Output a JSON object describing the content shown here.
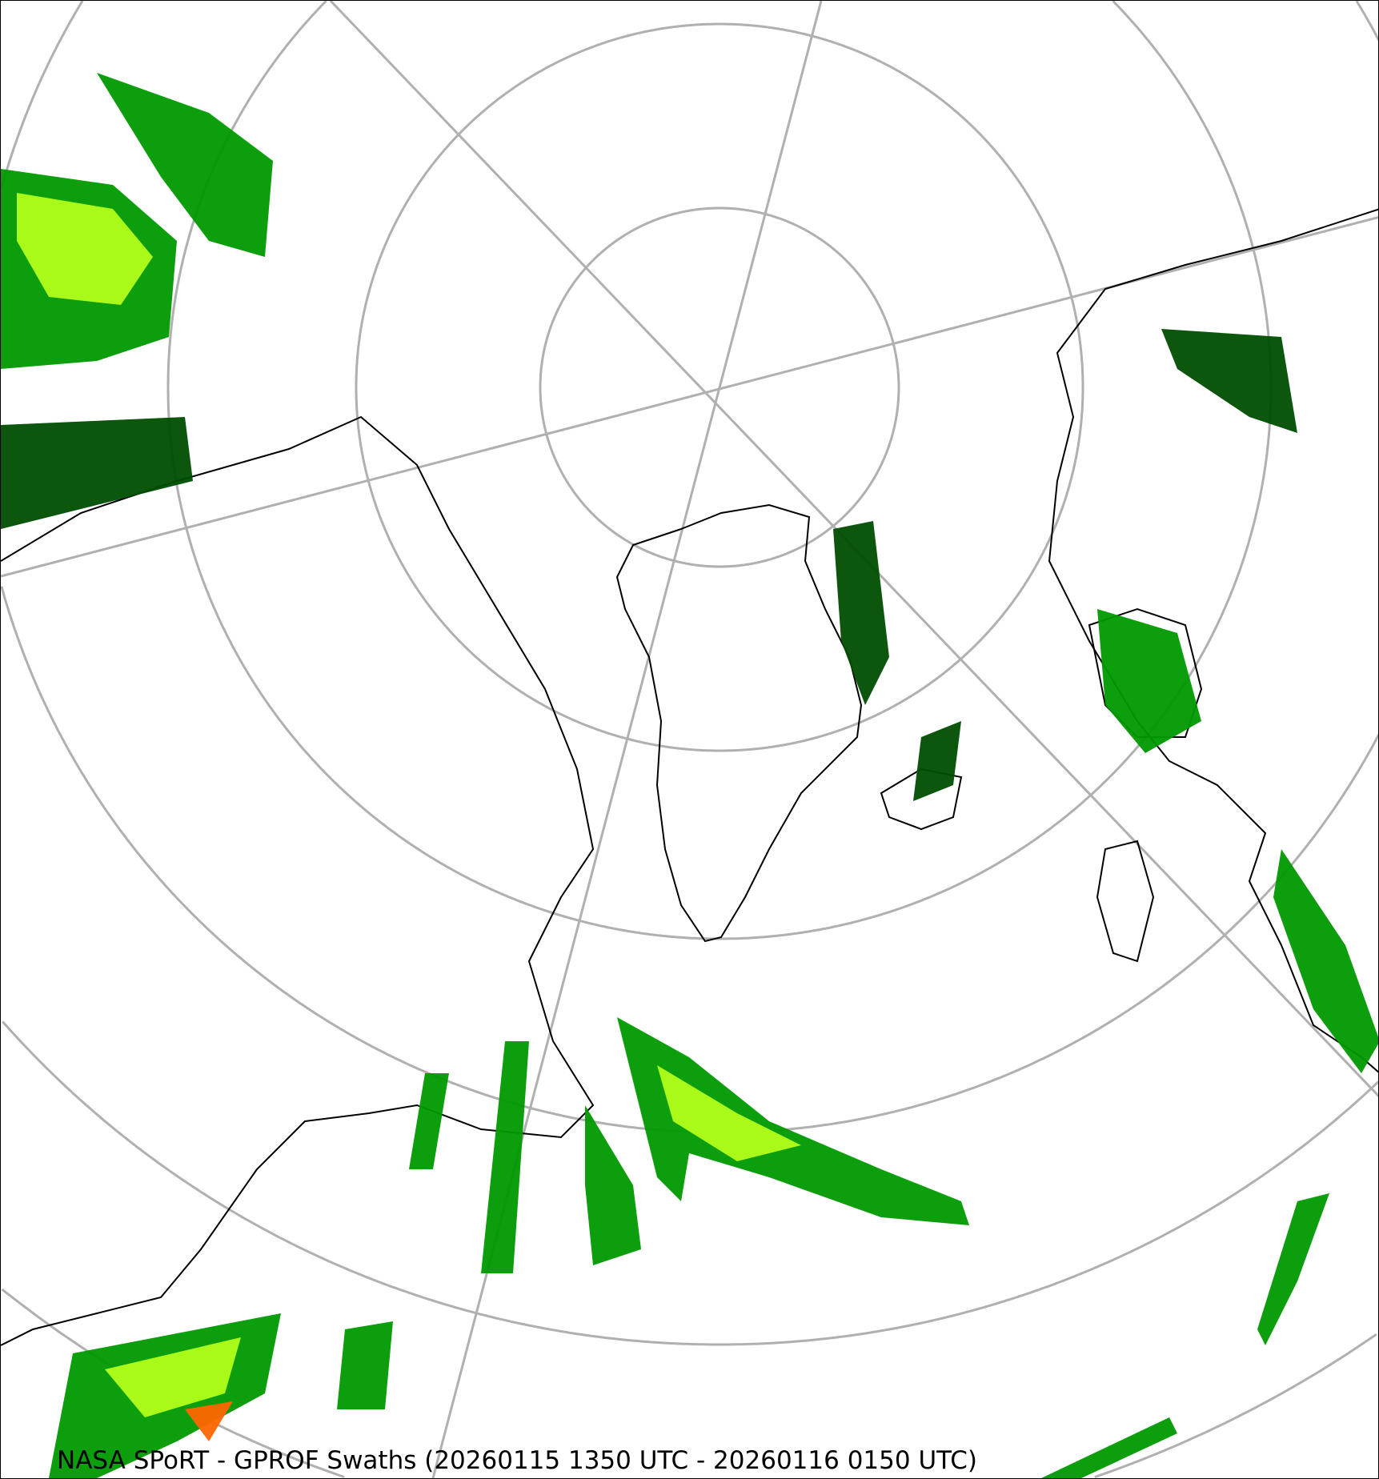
{
  "caption": "NASA SPoRT - GPROF Swaths (20260115 1350 UTC - 20260116 0150 UTC)",
  "map": {
    "projection": "north-polar-stereographic",
    "colors": {
      "graticule": "#b0b0b0",
      "coastline": "#000000",
      "precip_light": "#004d00",
      "precip_2": "#009900",
      "precip_3": "#00e600",
      "precip_4": "#b3ff1a",
      "precip_5": "#ffcc00",
      "precip_6": "#ff6600"
    }
  }
}
